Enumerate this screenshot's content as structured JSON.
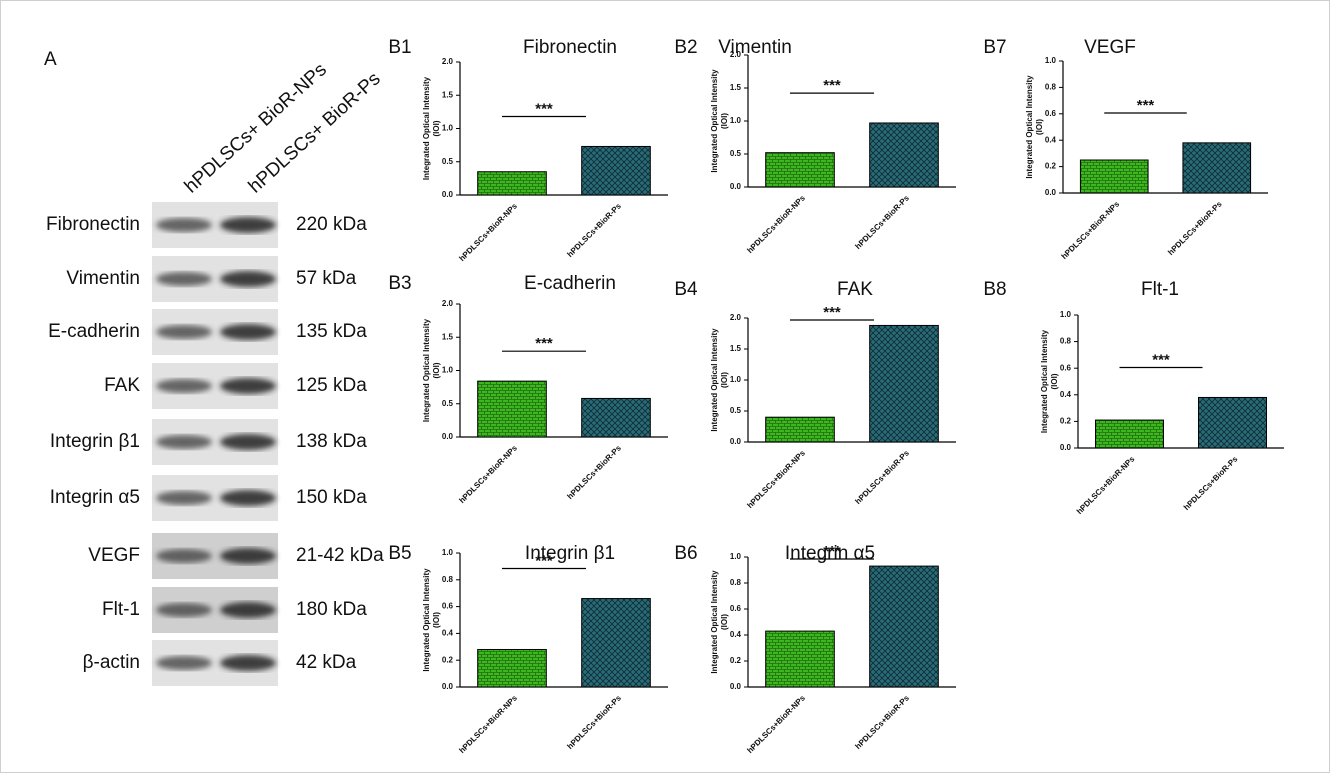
{
  "figure": {
    "panel_label": "A",
    "columns": [
      "hPDLSCs+ BioR-NPs",
      "hPDLSCs+ BioR-Ps"
    ],
    "rows": [
      {
        "protein": "Fibronectin",
        "size": "220 kDa"
      },
      {
        "protein": "Vimentin",
        "size": "57 kDa"
      },
      {
        "protein": "E-cadherin",
        "size": "135 kDa"
      },
      {
        "protein": "FAK",
        "size": "125 kDa"
      },
      {
        "protein": "Integrin β1",
        "size": "138 kDa"
      },
      {
        "protein": "Integrin α5",
        "size": "150 kDa"
      },
      {
        "protein": "VEGF",
        "size": "21-42 kDa"
      },
      {
        "protein": "Flt-1",
        "size": "180 kDa"
      },
      {
        "protein": "β-actin",
        "size": "42 kDa"
      }
    ]
  },
  "chart_data": [
    {
      "type": "bar",
      "panel": "B1",
      "title": "Fibronectin",
      "ylabel": [
        "Integrated  Optical Intensity",
        "(IOI)"
      ],
      "categories": [
        "hPDLSCs+BioR-NPs",
        "hPDLSCs+BioR-Ps"
      ],
      "values": [
        0.35,
        0.73
      ],
      "colors": [
        "#3cb81e",
        "#2a6b78"
      ],
      "ylim": [
        0,
        2
      ],
      "yticks": [
        {
          "value": 0,
          "label": "0.0"
        },
        0.5,
        {
          "value": 1,
          "label": "1.0"
        },
        1.5,
        {
          "value": 2,
          "label": "2.0"
        }
      ],
      "significance": "***"
    },
    {
      "type": "bar",
      "panel": "B2",
      "title": "Vimentin",
      "ylabel": [
        "Integrated  Optical Intensity",
        "(IOI)"
      ],
      "categories": [
        "hPDLSCs+BioR-NPs",
        "hPDLSCs+BioR-Ps"
      ],
      "values": [
        0.52,
        0.97
      ],
      "colors": [
        "#3cb81e",
        "#2a6b78"
      ],
      "ylim": [
        0,
        2
      ],
      "yticks": [
        {
          "value": 0,
          "label": "0.0"
        },
        0.5,
        {
          "value": 1,
          "label": "1.0"
        },
        1.5,
        {
          "value": 2,
          "label": "2.0"
        }
      ],
      "significance": "***"
    },
    {
      "type": "bar",
      "panel": "B7",
      "title": "VEGF",
      "ylabel": [
        "Integrated  Optical Intensity",
        "(IOI)"
      ],
      "categories": [
        "hPDLSCs+BioR-NPs",
        "hPDLSCs+BioR-Ps"
      ],
      "values": [
        0.25,
        0.38
      ],
      "colors": [
        "#3cb81e",
        "#2a6b78"
      ],
      "ylim": [
        0,
        1
      ],
      "yticks": [
        {
          "value": 0,
          "label": "0.0"
        },
        0.2,
        0.4,
        0.6,
        0.8,
        {
          "value": 1,
          "label": "1.0"
        }
      ],
      "significance": "***"
    },
    {
      "type": "bar",
      "panel": "B3",
      "title": "E-cadherin",
      "ylabel": [
        "Integrated  Optical Intensity",
        "(IOI)"
      ],
      "categories": [
        "hPDLSCs+BioR-NPs",
        "hPDLSCs+BioR-Ps"
      ],
      "values": [
        0.84,
        0.58
      ],
      "colors": [
        "#3cb81e",
        "#2a6b78"
      ],
      "ylim": [
        0,
        2
      ],
      "yticks": [
        {
          "value": 0,
          "label": "0.0"
        },
        0.5,
        {
          "value": 1,
          "label": "1.0"
        },
        1.5,
        {
          "value": 2,
          "label": "2.0"
        }
      ],
      "significance": "***"
    },
    {
      "type": "bar",
      "panel": "B4",
      "title": "FAK",
      "ylabel": [
        "Integrated Optical Intensity",
        "(IOI)"
      ],
      "categories": [
        "hPDLSCs+BioR-NPs",
        "hPDLSCs+BioR-Ps"
      ],
      "values": [
        0.4,
        1.88
      ],
      "colors": [
        "#3cb81e",
        "#2a6b78"
      ],
      "ylim": [
        0,
        2
      ],
      "yticks": [
        {
          "value": 0,
          "label": "0.0"
        },
        0.5,
        {
          "value": 1,
          "label": "1.0"
        },
        1.5,
        {
          "value": 2,
          "label": "2.0"
        }
      ],
      "significance": "***"
    },
    {
      "type": "bar",
      "panel": "B8",
      "title": "Flt-1",
      "ylabel": [
        "Integrated  Optical Intensity",
        "(IOI)"
      ],
      "categories": [
        "hPDLSCs+BioR-NPs",
        "hPDLSCs+BioR-Ps"
      ],
      "values": [
        0.21,
        0.38
      ],
      "colors": [
        "#3cb81e",
        "#2a6b78"
      ],
      "ylim": [
        0,
        1
      ],
      "yticks": [
        {
          "value": 0,
          "label": "0.0"
        },
        0.2,
        0.4,
        0.6,
        0.8,
        {
          "value": 1,
          "label": "1.0"
        }
      ],
      "significance": "***"
    },
    {
      "type": "bar",
      "panel": "B5",
      "title": "Integrin β1",
      "ylabel": [
        "Integrated  Optical Intensity",
        "(IOI)"
      ],
      "categories": [
        "hPDLSCs+BioR-NPs",
        "hPDLSCs+BioR-Ps"
      ],
      "values": [
        0.28,
        0.66
      ],
      "colors": [
        "#3cb81e",
        "#2a6b78"
      ],
      "ylim": [
        0,
        1
      ],
      "yticks": [
        {
          "value": 0,
          "label": "0.0"
        },
        0.2,
        0.4,
        0.6,
        0.8,
        {
          "value": 1,
          "label": "1.0"
        }
      ],
      "significance": "***"
    },
    {
      "type": "bar",
      "panel": "B6",
      "title": "Integrin α5",
      "ylabel": [
        "Integrated  Optical Intensity",
        "(IOI)"
      ],
      "categories": [
        "hPDLSCs+BioR-NPs",
        "hPDLSCs+BioR-Ps"
      ],
      "values": [
        0.43,
        0.93
      ],
      "colors": [
        "#3cb81e",
        "#2a6b78"
      ],
      "ylim": [
        0,
        1
      ],
      "yticks": [
        {
          "value": 0,
          "label": "0.0"
        },
        0.2,
        0.4,
        0.6,
        0.8,
        {
          "value": 1,
          "label": "1.0"
        }
      ],
      "significance": "***"
    }
  ]
}
